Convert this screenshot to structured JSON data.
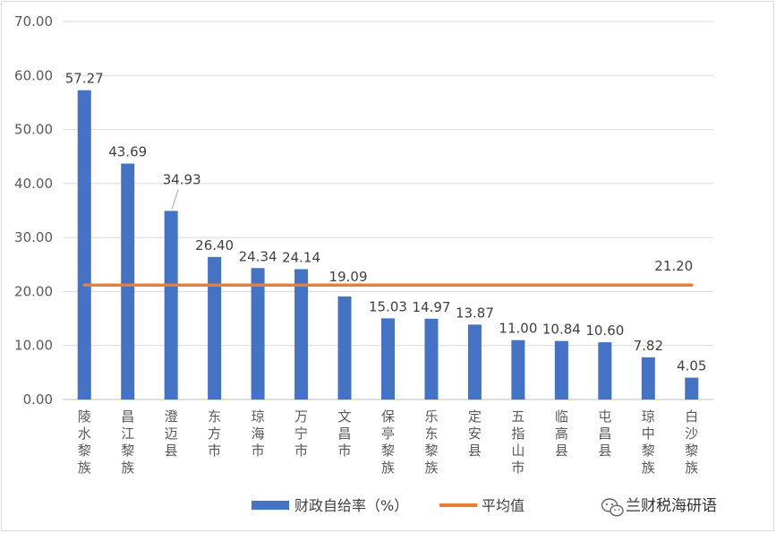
{
  "chart_data": {
    "type": "bar",
    "categories": [
      "陵水黎族",
      "昌江黎族",
      "澄迈县",
      "东方市",
      "琼海市",
      "万宁市",
      "文昌市",
      "保亭黎族",
      "乐东黎族",
      "定安县",
      "五指山市",
      "临高县",
      "屯昌县",
      "琼中黎族",
      "白沙黎族"
    ],
    "series": [
      {
        "name": "财政自给率（%）",
        "type": "bar",
        "color": "#4472c4",
        "values": [
          57.27,
          43.69,
          34.93,
          26.4,
          24.34,
          24.14,
          19.09,
          15.03,
          14.97,
          13.87,
          11.0,
          10.84,
          10.6,
          7.82,
          4.05
        ],
        "labels": [
          "57.27",
          "43.69",
          "34.93",
          "26.40",
          "24.34",
          "24.14",
          "19.09",
          "15.03",
          "14.97",
          "13.87",
          "11.00",
          "10.84",
          "10.60",
          "7.82",
          "4.05"
        ]
      },
      {
        "name": "平均值",
        "type": "line",
        "color": "#ed7d31",
        "value": 21.2,
        "label": "21.20"
      }
    ],
    "yticks": [
      "0.00",
      "10.00",
      "20.00",
      "30.00",
      "40.00",
      "50.00",
      "60.00",
      "70.00"
    ],
    "ylim": [
      0,
      70
    ],
    "grid": true,
    "legend_position": "bottom"
  },
  "watermark": {
    "text": "兰财税海研语",
    "icon": "wechat-icon"
  }
}
